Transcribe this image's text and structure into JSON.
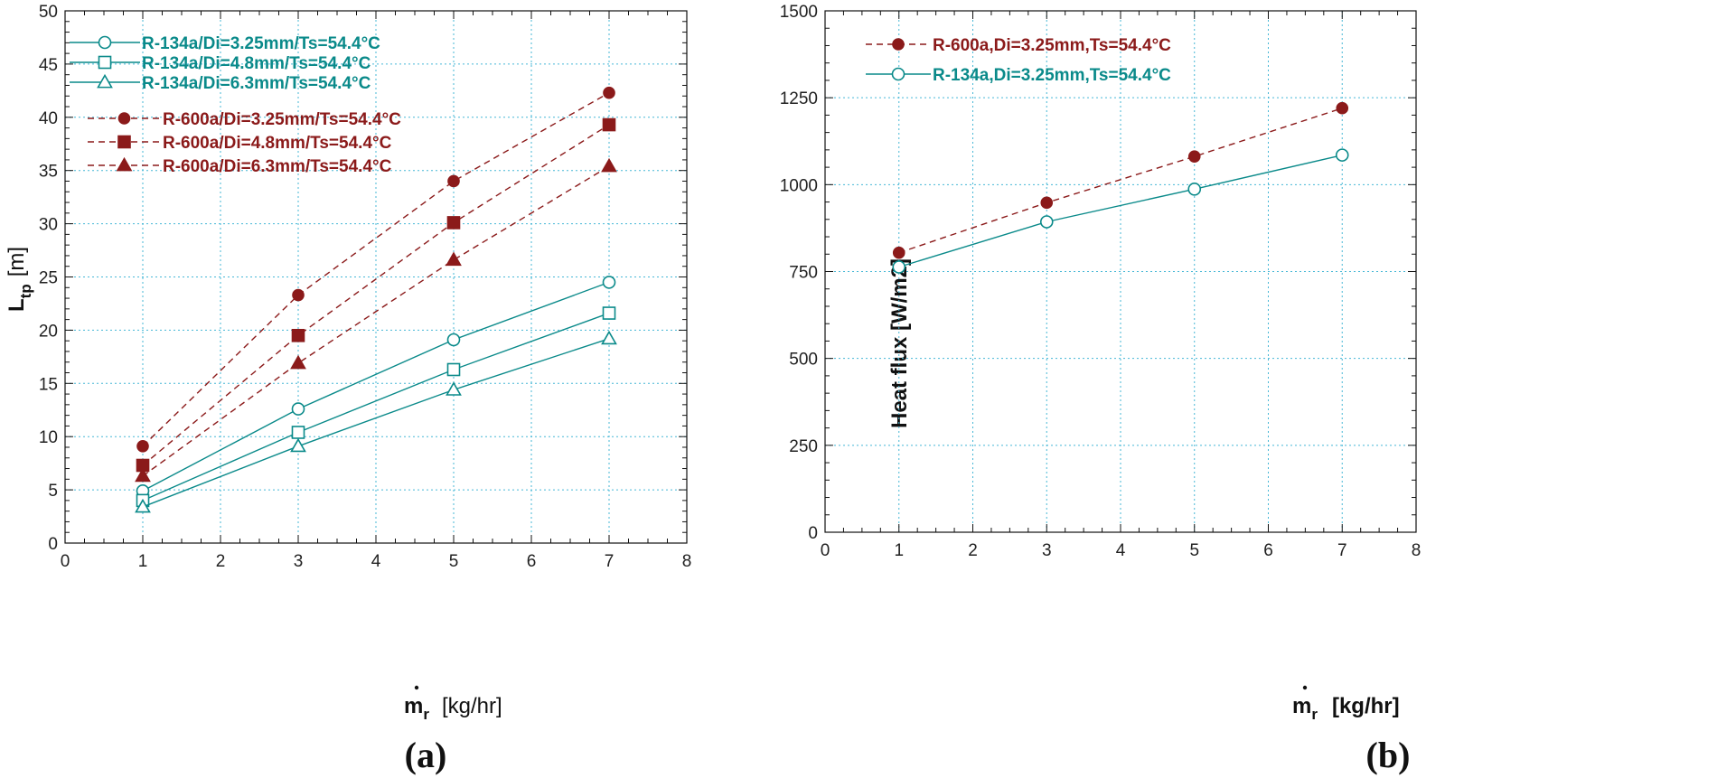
{
  "colors": {
    "teal": "#0a8a8a",
    "red": "#8b1a1a",
    "grid": "#46b7d6",
    "frame": "#111111"
  },
  "chart_data": [
    {
      "panel": "(a)",
      "type": "line",
      "xlabel_main": "m",
      "xlabel_sub": "r",
      "xlabel_unit": "[kg/hr]",
      "ylabel_main": "L",
      "ylabel_sub": "tp",
      "ylabel_unit": "[m]",
      "xlim": [
        0,
        8
      ],
      "ylim": [
        0,
        50
      ],
      "xticks": [
        0,
        1,
        2,
        3,
        4,
        5,
        6,
        7,
        8
      ],
      "yticks": [
        0,
        5,
        10,
        15,
        20,
        25,
        30,
        35,
        40,
        45,
        50
      ],
      "x": [
        1,
        3,
        5,
        7
      ],
      "series": [
        {
          "name": "R-134a/Di=3.25mm/Ts=54.4°C",
          "values": [
            4.9,
            12.6,
            19.1,
            24.5
          ],
          "color": "teal",
          "marker": "circle-open",
          "dash": "solid"
        },
        {
          "name": "R-134a/Di=4.8mm/Ts=54.4°C",
          "values": [
            4.0,
            10.4,
            16.3,
            21.6
          ],
          "color": "teal",
          "marker": "square-open",
          "dash": "solid"
        },
        {
          "name": "R-134a/Di=6.3mm/Ts=54.4°C",
          "values": [
            3.4,
            9.1,
            14.4,
            19.2
          ],
          "color": "teal",
          "marker": "triangle-open",
          "dash": "solid"
        },
        {
          "name": "R-600a/Di=3.25mm/Ts=54.4°C",
          "values": [
            9.1,
            23.3,
            34.0,
            42.3
          ],
          "color": "red",
          "marker": "circle-filled",
          "dash": "dashed"
        },
        {
          "name": "R-600a/Di=4.8mm/Ts=54.4°C",
          "values": [
            7.3,
            19.5,
            30.1,
            39.3
          ],
          "color": "red",
          "marker": "square-filled",
          "dash": "dashed"
        },
        {
          "name": "R-600a/Di=6.3mm/Ts=54.4°C",
          "values": [
            6.3,
            16.9,
            26.6,
            35.4
          ],
          "color": "red",
          "marker": "triangle-filled",
          "dash": "dashed"
        }
      ]
    },
    {
      "panel": "(b)",
      "type": "line",
      "xlabel_main": "m",
      "xlabel_sub": "r",
      "xlabel_unit": "[kg/hr]",
      "ylabel": "Heat flux  [W/m2]",
      "xlim": [
        0,
        8
      ],
      "ylim": [
        0,
        1500
      ],
      "xticks": [
        0,
        1,
        2,
        3,
        4,
        5,
        6,
        7,
        8
      ],
      "yticks": [
        0,
        250,
        500,
        750,
        1000,
        1250,
        1500
      ],
      "x": [
        1,
        3,
        5,
        7
      ],
      "series": [
        {
          "name": "R-600a,Di=3.25mm,Ts=54.4°C",
          "values": [
            804,
            948,
            1081,
            1220
          ],
          "color": "red",
          "marker": "circle-filled",
          "dash": "dashed"
        },
        {
          "name": "R-134a,Di=3.25mm,Ts=54.4°C",
          "values": [
            763,
            893,
            987,
            1085
          ],
          "color": "teal",
          "marker": "circle-open",
          "dash": "solid"
        }
      ]
    }
  ]
}
